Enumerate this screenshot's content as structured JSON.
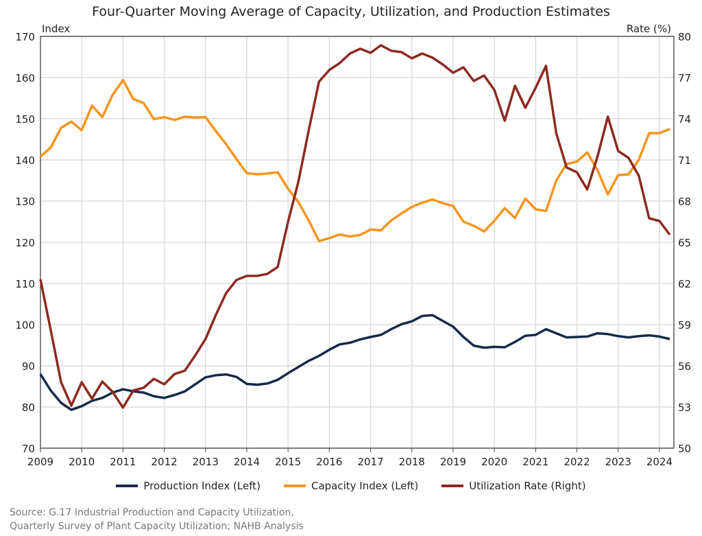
{
  "chart_data": {
    "type": "line",
    "title": "Four-Quarter Moving Average of Capacity, Utilization, and Production Estimates",
    "ylabel_left": "Index",
    "ylabel_right": "Rate (%)",
    "ylim_left": [
      70,
      170
    ],
    "ylim_right": [
      50,
      80
    ],
    "yticks_left": [
      70,
      80,
      90,
      100,
      110,
      120,
      130,
      140,
      150,
      160,
      170
    ],
    "yticks_right": [
      50,
      53,
      56,
      59,
      62,
      65,
      68,
      71,
      74,
      77,
      80
    ],
    "xlim": [
      2009,
      2024.35
    ],
    "xticks": [
      2009,
      2010,
      2011,
      2012,
      2013,
      2014,
      2015,
      2016,
      2017,
      2018,
      2019,
      2020,
      2021,
      2022,
      2023,
      2024
    ],
    "grid": true,
    "legend_position": "bottom",
    "x_start": 2009,
    "x_step": 0.25,
    "series": [
      {
        "name": "Production Index (Left)",
        "axis": "left",
        "color": "#17294a",
        "values": [
          88,
          84,
          81,
          79.3,
          80.2,
          81.5,
          82.2,
          83.5,
          84.3,
          83.8,
          83.5,
          82.6,
          82.2,
          82.9,
          83.8,
          85.5,
          87.2,
          87.7,
          87.9,
          87.3,
          85.6,
          85.4,
          85.7,
          86.6,
          88.2,
          89.7,
          91.2,
          92.4,
          93.9,
          95.2,
          95.6,
          96.4,
          97.0,
          97.5,
          98.9,
          100.1,
          100.8,
          102.1,
          102.3,
          100.9,
          99.5,
          97.0,
          94.9,
          94.4,
          94.6,
          94.5,
          95.8,
          97.3,
          97.5,
          98.9,
          97.9,
          96.9,
          97.0,
          97.1,
          97.9,
          97.7,
          97.2,
          96.9,
          97.2,
          97.4,
          97.1,
          96.5
        ]
      },
      {
        "name": "Capacity Index (Left)",
        "axis": "left",
        "color": "#f7941d",
        "values": [
          140.8,
          143,
          147.8,
          149.3,
          147.2,
          153.2,
          150.4,
          155.8,
          159.4,
          154.8,
          153.8,
          149.9,
          150.4,
          149.7,
          150.5,
          150.3,
          150.4,
          147,
          143.8,
          140.2,
          136.8,
          136.5,
          136.7,
          137,
          133,
          129.8,
          125.3,
          120.3,
          121,
          121.9,
          121.4,
          121.8,
          123.1,
          122.9,
          125.3,
          127,
          128.6,
          129.6,
          130.4,
          129.5,
          128.8,
          125,
          124,
          122.6,
          125.2,
          128.3,
          125.9,
          130.6,
          128,
          127.6,
          135,
          139,
          139.6,
          141.8,
          137.5,
          131.6,
          136.3,
          136.5,
          140,
          146.5,
          146.5,
          147.5
        ]
      },
      {
        "name": "Utilization Rate (Right)",
        "axis": "right",
        "color": "#8c2a1f",
        "values": [
          62.3,
          58.6,
          54.8,
          53.1,
          54.8,
          53.6,
          54.85,
          54.1,
          52.95,
          54.2,
          54.4,
          55.05,
          54.65,
          55.4,
          55.65,
          56.75,
          57.95,
          59.7,
          61.3,
          62.25,
          62.55,
          62.55,
          62.7,
          63.2,
          66.5,
          69.4,
          73.15,
          76.7,
          77.55,
          78.05,
          78.75,
          79.1,
          78.8,
          79.35,
          78.95,
          78.85,
          78.4,
          78.75,
          78.45,
          77.95,
          77.35,
          77.75,
          76.75,
          77.15,
          76.1,
          73.85,
          76.4,
          74.8,
          76.25,
          77.85,
          72.95,
          70.45,
          70.1,
          68.85,
          71.25,
          74.15,
          71.65,
          71.15,
          69.85,
          66.75,
          66.55,
          65.55
        ]
      }
    ]
  },
  "source": {
    "line1": "Source: G.17 Industrial Production and Capacity Utilization,",
    "line2": "Quarterly Survey of Plant Capacity Utilization; NAHB Analysis"
  }
}
